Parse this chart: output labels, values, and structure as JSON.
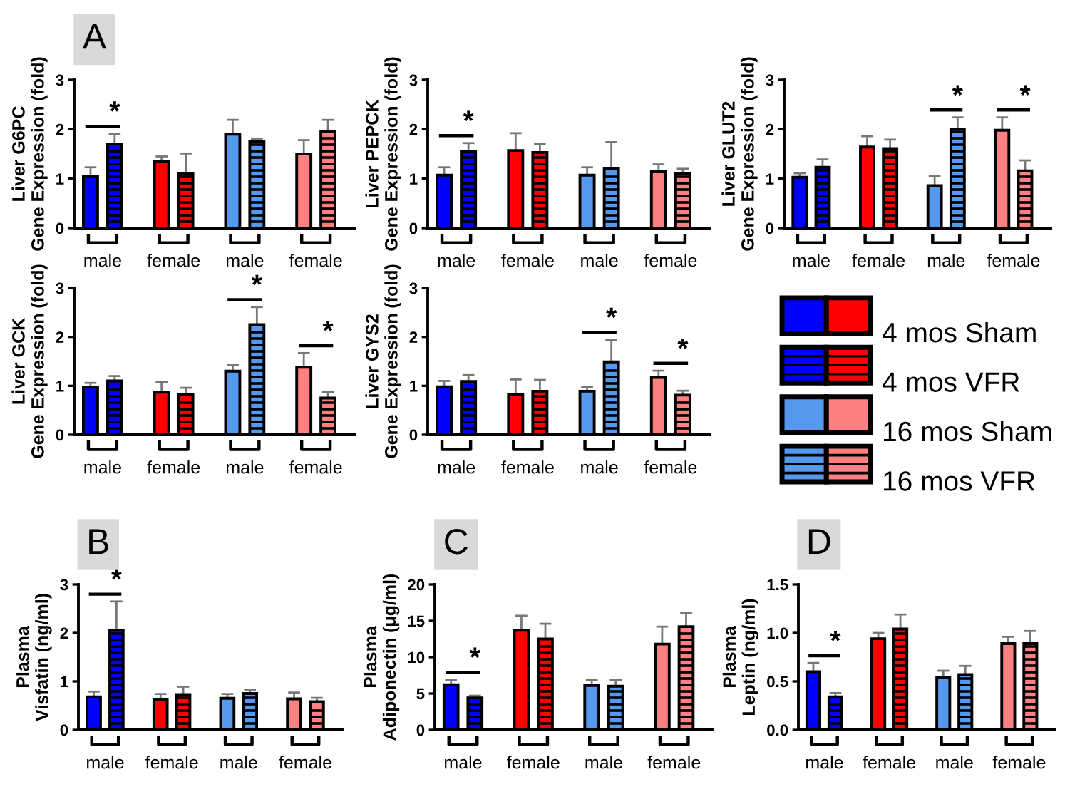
{
  "chart_data": [
    {
      "type": "bar",
      "title": "A",
      "ylabel": "Liver G6PC\nGene Expression (fold)",
      "categories": [
        "male",
        "female",
        "male",
        "female"
      ],
      "ylim": [
        0,
        3
      ],
      "yticks": [
        0,
        1,
        2,
        3
      ],
      "series": [
        {
          "values": [
            1.04,
            1.35,
            null,
            null
          ],
          "colors": [
            "#0000ff",
            "#ff0000",
            null,
            null
          ],
          "errors": [
            0.19,
            0.1,
            null,
            null
          ]
        },
        {
          "values": [
            1.7,
            1.11,
            null,
            null
          ],
          "colors": [
            "#0000ff",
            "#ff0000",
            null,
            null
          ],
          "errors": [
            0.21,
            0.4,
            null,
            null
          ],
          "value_labels": [
            "*",
            null,
            null,
            null
          ]
        },
        {
          "values": [
            null,
            null,
            1.9,
            1.5
          ],
          "colors": [
            null,
            null,
            "#5599ee",
            "#ff8080"
          ],
          "errors": [
            null,
            null,
            0.29,
            0.28
          ]
        },
        {
          "values": [
            null,
            null,
            1.76,
            1.95
          ],
          "colors": [
            null,
            null,
            "#5599ee",
            "#ff8080"
          ],
          "errors": [
            null,
            null,
            0.05,
            0.24
          ]
        }
      ]
    },
    {
      "type": "bar",
      "ylabel": "Liver PEPCK\nGene Expression (fold)",
      "categories": [
        "male",
        "female",
        "male",
        "female"
      ],
      "ylim": [
        0,
        3
      ],
      "yticks": [
        0,
        1,
        2,
        3
      ],
      "series": [
        {
          "values": [
            1.07,
            1.57,
            null,
            null
          ],
          "colors": [
            "#0000ff",
            "#ff0000",
            null,
            null
          ],
          "errors": [
            0.16,
            0.35,
            null,
            null
          ]
        },
        {
          "values": [
            1.55,
            1.53,
            null,
            null
          ],
          "colors": [
            "#0000ff",
            "#ff0000",
            null,
            null
          ],
          "errors": [
            0.17,
            0.17,
            null,
            null
          ],
          "value_labels": [
            "*",
            null,
            null,
            null
          ]
        },
        {
          "values": [
            null,
            null,
            1.07,
            1.14
          ],
          "colors": [
            null,
            null,
            "#5599ee",
            "#ff8080"
          ],
          "errors": [
            null,
            null,
            0.16,
            0.15
          ]
        },
        {
          "values": [
            null,
            null,
            1.21,
            1.11
          ],
          "colors": [
            null,
            null,
            "#5599ee",
            "#ff8080"
          ],
          "errors": [
            null,
            null,
            0.53,
            0.09
          ]
        }
      ]
    },
    {
      "type": "bar",
      "ylabel": "Liver GLUT2\nGene Expression (fold)",
      "categories": [
        "male",
        "female",
        "male",
        "female"
      ],
      "ylim": [
        0,
        3
      ],
      "yticks": [
        0,
        1,
        2,
        3
      ],
      "legend": "bottom",
      "series": [
        {
          "name": "4 mos Sham",
          "values": [
            1.03,
            1.64,
            null,
            null
          ],
          "colors": [
            "#0000ff",
            "#ff0000",
            null,
            null
          ],
          "errors": [
            0.08,
            0.22,
            null,
            null
          ]
        },
        {
          "name": "4 mos VFR",
          "values": [
            1.23,
            1.61,
            null,
            null
          ],
          "colors": [
            "#0000ff",
            "#ff0000",
            null,
            null
          ],
          "errors": [
            0.16,
            0.18,
            null,
            null
          ]
        },
        {
          "name": "16 mos Sham",
          "values": [
            null,
            null,
            0.86,
            1.98
          ],
          "colors": [
            null,
            null,
            "#5599ee",
            "#ff8080"
          ],
          "errors": [
            null,
            null,
            0.19,
            0.26
          ]
        },
        {
          "name": "16 mos VFR",
          "values": [
            null,
            null,
            2.0,
            1.16
          ],
          "colors": [
            null,
            null,
            "#5599ee",
            "#ff8080"
          ],
          "errors": [
            null,
            null,
            0.24,
            0.21
          ],
          "value_labels": [
            null,
            null,
            "*",
            "*"
          ]
        }
      ]
    },
    {
      "type": "bar",
      "ylabel": "Liver GCK\nGene Expression (fold)",
      "categories": [
        "male",
        "female",
        "male",
        "female"
      ],
      "ylim": [
        0,
        3
      ],
      "yticks": [
        0,
        1,
        2,
        3
      ],
      "series": [
        {
          "values": [
            0.97,
            0.87,
            null,
            null
          ],
          "colors": [
            "#0000ff",
            "#ff0000",
            null,
            null
          ],
          "errors": [
            0.09,
            0.21,
            null,
            null
          ]
        },
        {
          "values": [
            1.1,
            0.83,
            null,
            null
          ],
          "colors": [
            "#0000ff",
            "#ff0000",
            null,
            null
          ],
          "errors": [
            0.1,
            0.13,
            null,
            null
          ]
        },
        {
          "values": [
            null,
            null,
            1.3,
            1.38
          ],
          "colors": [
            null,
            null,
            "#5599ee",
            "#ff8080"
          ],
          "errors": [
            null,
            null,
            0.13,
            0.29
          ]
        },
        {
          "values": [
            null,
            null,
            2.25,
            0.75
          ],
          "colors": [
            null,
            null,
            "#5599ee",
            "#ff8080"
          ],
          "errors": [
            null,
            null,
            0.36,
            0.12
          ],
          "value_labels": [
            null,
            null,
            "*",
            "*"
          ]
        }
      ]
    },
    {
      "type": "bar",
      "ylabel": "Liver GYS2\nGene Expression (fold)",
      "categories": [
        "male",
        "female",
        "male",
        "female"
      ],
      "ylim": [
        0,
        3
      ],
      "yticks": [
        0,
        1,
        2,
        3
      ],
      "series": [
        {
          "values": [
            0.98,
            0.83,
            null,
            null
          ],
          "colors": [
            "#0000ff",
            "#ff0000",
            null,
            null
          ],
          "errors": [
            0.12,
            0.3,
            null,
            null
          ]
        },
        {
          "values": [
            1.09,
            0.89,
            null,
            null
          ],
          "colors": [
            "#0000ff",
            "#ff0000",
            null,
            null
          ],
          "errors": [
            0.13,
            0.23,
            null,
            null
          ]
        },
        {
          "values": [
            null,
            null,
            0.89,
            1.17
          ],
          "colors": [
            null,
            null,
            "#5599ee",
            "#ff8080"
          ],
          "errors": [
            null,
            null,
            0.09,
            0.14
          ]
        },
        {
          "values": [
            null,
            null,
            1.49,
            0.81
          ],
          "colors": [
            null,
            null,
            "#5599ee",
            "#ff8080"
          ],
          "errors": [
            null,
            null,
            0.45,
            0.09
          ],
          "value_labels": [
            null,
            null,
            "*",
            "*"
          ]
        }
      ]
    },
    {
      "type": "bar",
      "title": "B",
      "ylabel": "Plasma\nVisfatin (ng/ml)",
      "categories": [
        "male",
        "female",
        "male",
        "female"
      ],
      "ylim": [
        0,
        3
      ],
      "yticks": [
        0,
        1,
        2,
        3
      ],
      "series": [
        {
          "values": [
            0.68,
            0.63,
            null,
            null
          ],
          "colors": [
            "#0000ff",
            "#ff0000",
            null,
            null
          ],
          "errors": [
            0.11,
            0.11,
            null,
            null
          ]
        },
        {
          "values": [
            2.06,
            0.73,
            null,
            null
          ],
          "colors": [
            "#0000ff",
            "#ff0000",
            null,
            null
          ],
          "errors": [
            0.59,
            0.16,
            null,
            null
          ],
          "value_labels": [
            "*",
            null,
            null,
            null
          ]
        },
        {
          "values": [
            null,
            null,
            0.65,
            0.64
          ],
          "colors": [
            null,
            null,
            "#5599ee",
            "#ff8080"
          ],
          "errors": [
            null,
            null,
            0.09,
            0.13
          ]
        },
        {
          "values": [
            null,
            null,
            0.75,
            0.58
          ],
          "colors": [
            null,
            null,
            "#5599ee",
            "#ff8080"
          ],
          "errors": [
            null,
            null,
            0.08,
            0.08
          ]
        }
      ]
    },
    {
      "type": "bar",
      "title": "C",
      "ylabel": "Plasma\nAdiponectin (μg/ml)",
      "categories": [
        "male",
        "female",
        "male",
        "female"
      ],
      "ylim": [
        0,
        20
      ],
      "yticks": [
        0,
        5,
        10,
        15,
        20
      ],
      "series": [
        {
          "values": [
            6.2,
            13.7,
            null,
            null
          ],
          "colors": [
            "#0000ff",
            "#ff0000",
            null,
            null
          ],
          "errors": [
            0.7,
            2.0,
            null,
            null
          ]
        },
        {
          "values": [
            4.4,
            12.5,
            null,
            null
          ],
          "colors": [
            "#0000ff",
            "#ff0000",
            null,
            null
          ],
          "errors": [
            0.3,
            2.1,
            null,
            null
          ],
          "value_labels": [
            "*",
            null,
            null,
            null
          ]
        },
        {
          "values": [
            null,
            null,
            6.1,
            11.8
          ],
          "colors": [
            null,
            null,
            "#5599ee",
            "#ff8080"
          ],
          "errors": [
            null,
            null,
            0.8,
            2.4
          ]
        },
        {
          "values": [
            null,
            null,
            6.0,
            14.2
          ],
          "colors": [
            null,
            null,
            "#5599ee",
            "#ff8080"
          ],
          "errors": [
            null,
            null,
            0.9,
            1.9
          ]
        }
      ]
    },
    {
      "type": "bar",
      "title": "D",
      "ylabel": "Plasma\nLeptin (ng/ml)",
      "categories": [
        "male",
        "female",
        "male",
        "female"
      ],
      "ylim": [
        0,
        1.5
      ],
      "yticks": [
        {
          "value": 0,
          "label": "0.0"
        },
        {
          "value": 0.5,
          "label": "0.5"
        },
        {
          "value": 1,
          "label": "1.0"
        },
        {
          "value": 1.5,
          "label": "1.5"
        }
      ],
      "series": [
        {
          "values": [
            0.6,
            0.94,
            null,
            null
          ],
          "colors": [
            "#0000ff",
            "#ff0000",
            null,
            null
          ],
          "errors": [
            0.09,
            0.06,
            null,
            null
          ]
        },
        {
          "values": [
            0.34,
            1.04,
            null,
            null
          ],
          "colors": [
            "#0000ff",
            "#ff0000",
            null,
            null
          ],
          "errors": [
            0.04,
            0.15,
            null,
            null
          ],
          "value_labels": [
            "*",
            null,
            null,
            null
          ]
        },
        {
          "values": [
            null,
            null,
            0.54,
            0.89
          ],
          "colors": [
            null,
            null,
            "#5599ee",
            "#ff8080"
          ],
          "errors": [
            null,
            null,
            0.07,
            0.07
          ]
        },
        {
          "values": [
            null,
            null,
            0.57,
            0.89
          ],
          "colors": [
            null,
            null,
            "#5599ee",
            "#ff8080"
          ],
          "errors": [
            null,
            null,
            0.09,
            0.13
          ]
        }
      ]
    }
  ]
}
